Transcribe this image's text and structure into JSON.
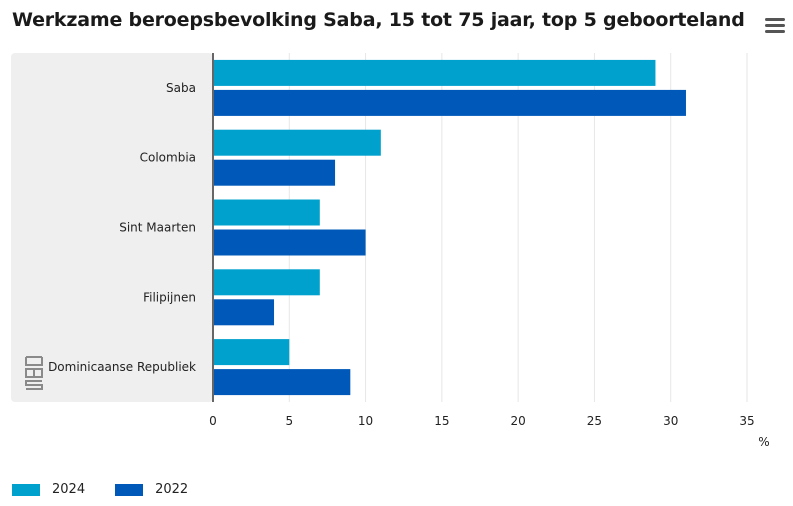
{
  "header": {
    "title": "Werkzame beroepsbevolking Saba, 15 tot 75 jaar, top 5 geboorteland",
    "menu_icon": "hamburger-menu-icon"
  },
  "logo": {
    "icon": "cbs-logo-icon"
  },
  "chart_data": {
    "type": "bar",
    "orientation": "horizontal",
    "categories": [
      "Saba",
      "Colombia",
      "Sint Maarten",
      "Filipijnen",
      "Dominicaanse Republiek"
    ],
    "series": [
      {
        "name": "2024",
        "color": "#00a1cd",
        "values": [
          29,
          11,
          7,
          7,
          5
        ]
      },
      {
        "name": "2022",
        "color": "#0058b8",
        "values": [
          31,
          8,
          10,
          4,
          9
        ]
      }
    ],
    "xlim": [
      0,
      35
    ],
    "xticks": [
      "0",
      "5",
      "10",
      "15",
      "20",
      "25",
      "30",
      "35"
    ],
    "xlabel": "%",
    "grid": true,
    "legend_position": "bottom-left"
  }
}
